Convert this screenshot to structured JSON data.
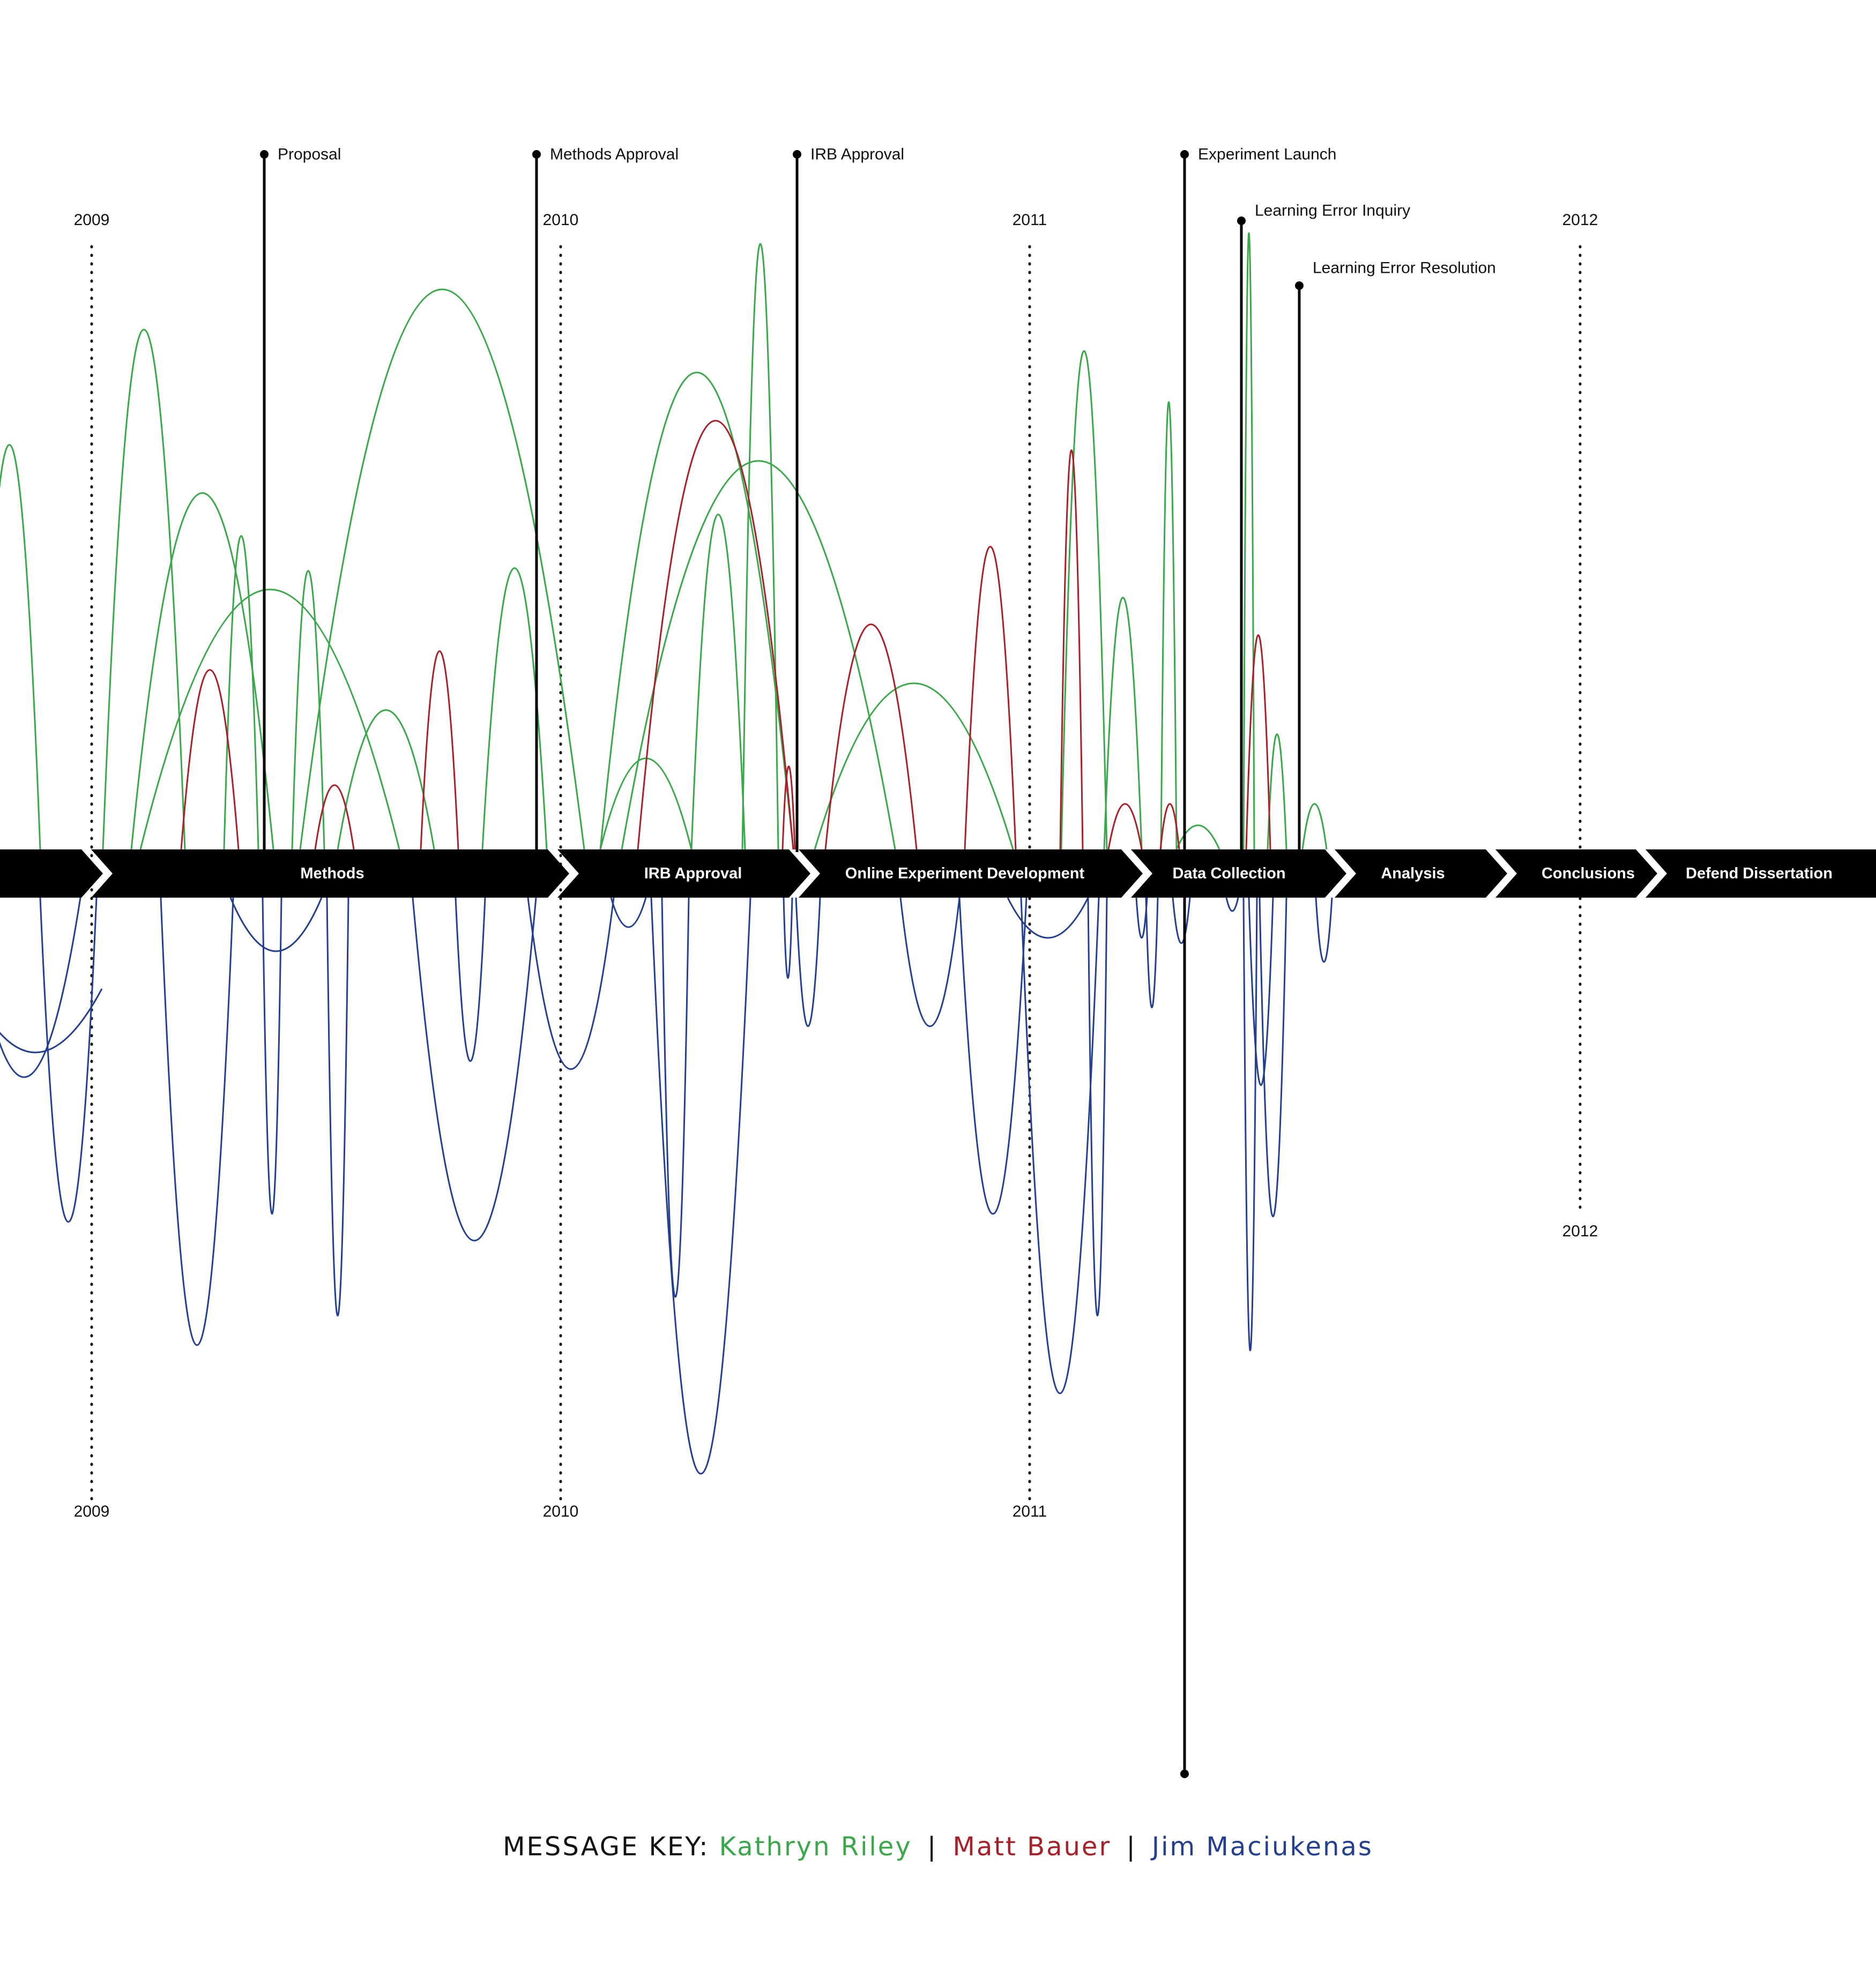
{
  "years": [
    "2009",
    "2010",
    "2011",
    "2012"
  ],
  "milestones": [
    {
      "label": "Proposal"
    },
    {
      "label": "Methods Approval"
    },
    {
      "label": "IRB Approval"
    },
    {
      "label": "Experiment Launch"
    },
    {
      "label": "Learning Error Inquiry"
    },
    {
      "label": "Learning Error Resolution"
    }
  ],
  "phases": [
    {
      "label": "Methods"
    },
    {
      "label": "IRB Approval"
    },
    {
      "label": "Online Experiment Development"
    },
    {
      "label": "Data Collection"
    },
    {
      "label": "Analysis"
    },
    {
      "label": "Conclusions"
    },
    {
      "label": "Defend Dissertation"
    }
  ],
  "key": {
    "prefix": "MESSAGE KEY:",
    "separator": "|",
    "people": [
      {
        "name": "Kathryn Riley",
        "color": "#3aa84a"
      },
      {
        "name": "Matt Bauer",
        "color": "#a8202a"
      },
      {
        "name": "Jim Maciukenas",
        "color": "#243f8f"
      }
    ]
  }
}
